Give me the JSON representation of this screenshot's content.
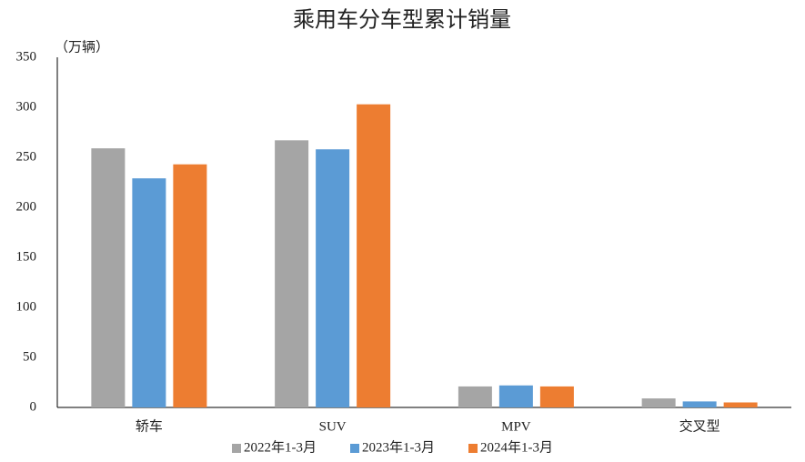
{
  "chart_data": {
    "type": "bar",
    "title": "乘用车分车型累计销量",
    "y_axis_label": "（万辆）",
    "categories": [
      "轿车",
      "SUV",
      "MPV",
      "交叉型"
    ],
    "series": [
      {
        "name": "2022年1-3月",
        "color": "#a5a5a5",
        "values": [
          259,
          267,
          21,
          9
        ]
      },
      {
        "name": "2023年1-3月",
        "color": "#5b9bd5",
        "values": [
          229,
          258,
          22,
          6
        ]
      },
      {
        "name": "2024年1-3月",
        "color": "#ed7d31",
        "values": [
          243,
          303,
          21,
          5
        ]
      }
    ],
    "ylim": [
      0,
      350
    ],
    "yticks": [
      0,
      50,
      100,
      150,
      200,
      250,
      300,
      350
    ],
    "grid": false,
    "legend": "bottom"
  }
}
